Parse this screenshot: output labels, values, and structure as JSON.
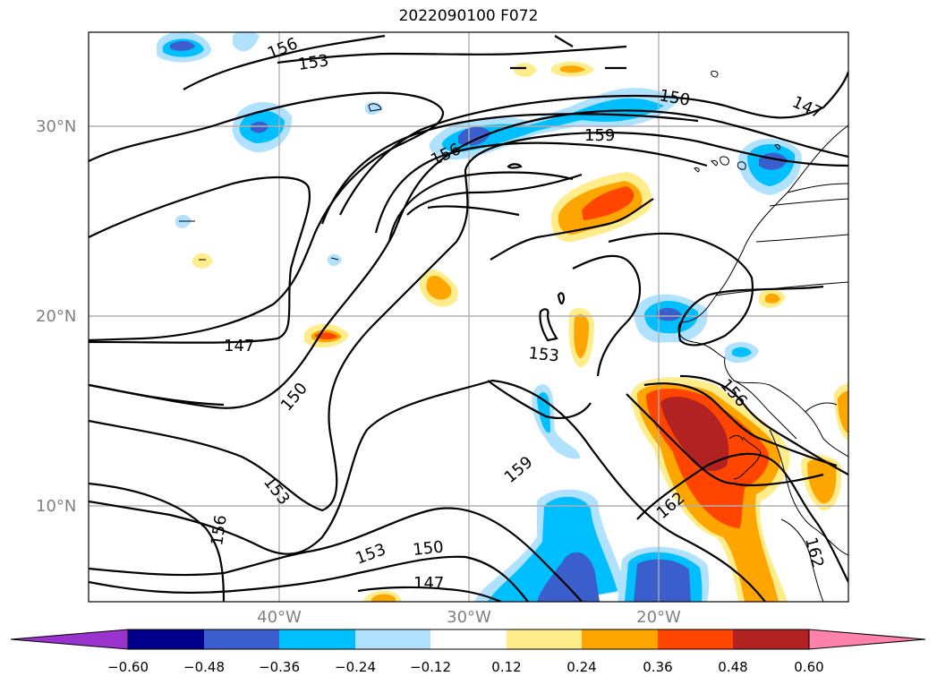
{
  "title": "2022090100 F072",
  "lat_labels": [
    "30°N",
    "20°N",
    "10°N"
  ],
  "lon_labels": [
    "40°W",
    "30°W",
    "20°W"
  ],
  "contour_labels": [
    "156",
    "153",
    "150",
    "147",
    "159",
    "153",
    "150",
    "147",
    "156",
    "153",
    "159",
    "150",
    "153",
    "156",
    "162",
    "162",
    "147",
    "156"
  ],
  "colorbar": {
    "ticks": [
      "−0.60",
      "−0.48",
      "−0.36",
      "−0.24",
      "−0.12",
      "0.12",
      "0.24",
      "0.36",
      "0.48",
      "0.60"
    ],
    "colors": [
      "#9a32cd",
      "#00008b",
      "#3a5fcd",
      "#00bfff",
      "#b0e2ff",
      "#ffffff",
      "#ffec8b",
      "#ffa500",
      "#ff4500",
      "#b22222",
      "#ff82ab"
    ]
  }
}
